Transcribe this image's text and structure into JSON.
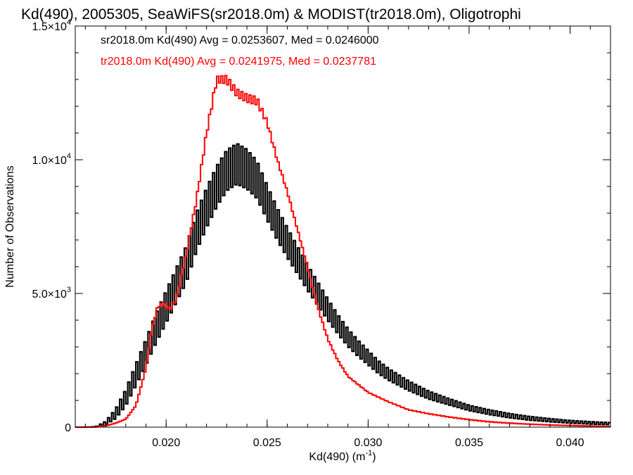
{
  "chart_data": {
    "type": "line",
    "title": "Kd(490), 2005305, SeaWiFS(sr2018.0m) & MODIST(tr2018.0m), Oligotrophi",
    "xlabel_text": "Kd(490) (m",
    "xlabel_sup": "-1",
    "xlabel_close": ")",
    "ylabel": "Number of Observations",
    "xlim": [
      0.0155,
      0.042
    ],
    "ylim": [
      0,
      15000
    ],
    "xticks": [
      {
        "v": 0.02,
        "label": "0.020"
      },
      {
        "v": 0.025,
        "label": "0.025"
      },
      {
        "v": 0.03,
        "label": "0.030"
      },
      {
        "v": 0.035,
        "label": "0.035"
      },
      {
        "v": 0.04,
        "label": "0.040"
      }
    ],
    "yticks": [
      {
        "v": 0,
        "m": "0",
        "e": ""
      },
      {
        "v": 5000,
        "m": "5.0×10",
        "e": "3"
      },
      {
        "v": 10000,
        "m": "1.0×10",
        "e": "4"
      },
      {
        "v": 15000,
        "m": "1.5×10",
        "e": "4"
      }
    ],
    "bin_width": 0.0001,
    "series": [
      {
        "name": "sr2018.0m",
        "color": "#000000",
        "legend": "sr2018.0m Kd(490) Avg = 0.0253607, Med = 0.0246000",
        "x": [
          0.0155,
          0.016,
          0.0165,
          0.017,
          0.0175,
          0.018,
          0.0185,
          0.019,
          0.0195,
          0.02,
          0.0205,
          0.021,
          0.0215,
          0.022,
          0.0225,
          0.023,
          0.0235,
          0.024,
          0.0245,
          0.025,
          0.0255,
          0.026,
          0.0265,
          0.027,
          0.0275,
          0.028,
          0.0285,
          0.029,
          0.0295,
          0.03,
          0.0305,
          0.031,
          0.032,
          0.033,
          0.034,
          0.035,
          0.036,
          0.037,
          0.038,
          0.039,
          0.04,
          0.041,
          0.042
        ],
        "y": [
          0,
          0,
          10,
          150,
          500,
          1100,
          1950,
          2800,
          3700,
          4500,
          5300,
          6100,
          7300,
          8200,
          9000,
          9600,
          9850,
          9650,
          9250,
          8400,
          7600,
          6900,
          6250,
          5600,
          5000,
          4400,
          3850,
          3350,
          2950,
          2600,
          2250,
          1980,
          1550,
          1200,
          950,
          720,
          560,
          430,
          330,
          260,
          200,
          160,
          130
        ],
        "amp": [
          0,
          0,
          5,
          60,
          180,
          300,
          400,
          480,
          550,
          600,
          640,
          680,
          720,
          740,
          760,
          760,
          760,
          740,
          700,
          650,
          600,
          560,
          520,
          480,
          440,
          400,
          360,
          330,
          300,
          270,
          240,
          220,
          180,
          150,
          120,
          100,
          90,
          80,
          70,
          60,
          50,
          45,
          40
        ]
      },
      {
        "name": "tr2018.0m",
        "color": "#ff0000",
        "legend": "tr2018.0m Kd(490) Avg = 0.0241975, Med = 0.0237781",
        "x": [
          0.0155,
          0.016,
          0.0165,
          0.017,
          0.0175,
          0.018,
          0.0185,
          0.019,
          0.0193,
          0.0196,
          0.0199,
          0.0202,
          0.0205,
          0.021,
          0.0215,
          0.022,
          0.0225,
          0.023,
          0.0235,
          0.024,
          0.0245,
          0.025,
          0.0255,
          0.026,
          0.0265,
          0.027,
          0.0275,
          0.028,
          0.0285,
          0.029,
          0.03,
          0.031,
          0.032,
          0.033,
          0.034,
          0.035,
          0.036,
          0.037,
          0.038,
          0.039,
          0.04,
          0.041,
          0.042
        ],
        "y": [
          0,
          0,
          0,
          50,
          150,
          300,
          800,
          2200,
          3700,
          4550,
          4600,
          4400,
          4800,
          6500,
          8500,
          11000,
          13000,
          13000,
          12500,
          12300,
          12200,
          11400,
          10000,
          8800,
          7400,
          6000,
          4500,
          3300,
          2500,
          1900,
          1300,
          950,
          650,
          500,
          380,
          280,
          200,
          150,
          110,
          80,
          60,
          40,
          20
        ],
        "amp": [
          0,
          0,
          0,
          0,
          0,
          0,
          0,
          0,
          0,
          60,
          60,
          60,
          40,
          40,
          60,
          80,
          120,
          150,
          150,
          150,
          150,
          80,
          40,
          30,
          20,
          20,
          20,
          20,
          10,
          10,
          10,
          10,
          10,
          10,
          10,
          10,
          10,
          10,
          5,
          5,
          5,
          5,
          5
        ]
      }
    ]
  }
}
